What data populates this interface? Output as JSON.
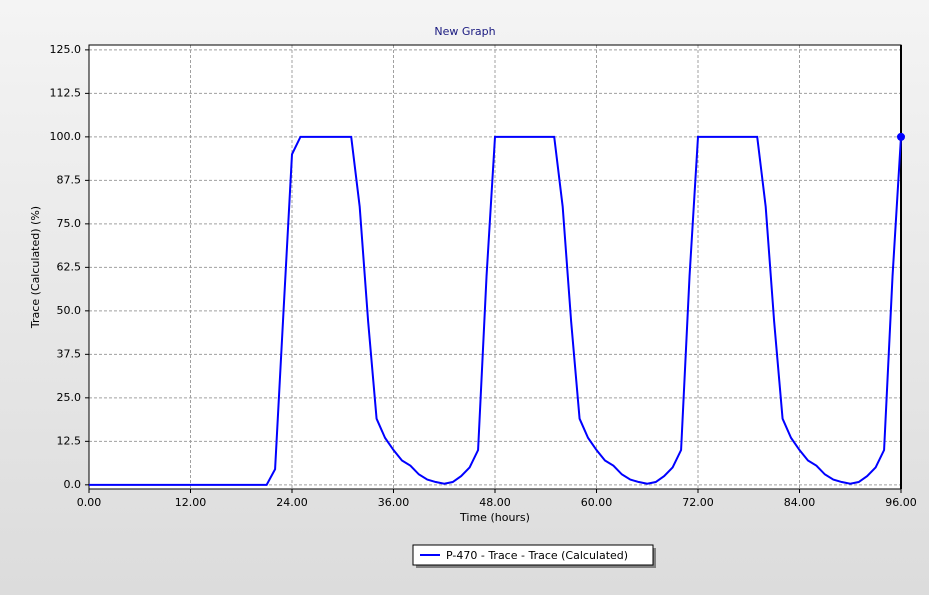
{
  "chart_data": {
    "type": "line",
    "title": "New Graph",
    "x_label": "Time (hours)",
    "y_label": "Trace (Calculated) (%)",
    "xlim": [
      0,
      96
    ],
    "ylim": [
      -1.2,
      126.4
    ],
    "xticks": [
      {
        "value": 0,
        "label": "0.00"
      },
      {
        "value": 12,
        "label": "12.00"
      },
      {
        "value": 24,
        "label": "24.00"
      },
      {
        "value": 36,
        "label": "36.00"
      },
      {
        "value": 48,
        "label": "48.00"
      },
      {
        "value": 60,
        "label": "60.00"
      },
      {
        "value": 72,
        "label": "72.00"
      },
      {
        "value": 84,
        "label": "84.00"
      },
      {
        "value": 96,
        "label": "96.00"
      }
    ],
    "yticks": [
      {
        "value": 0,
        "label": "0.0"
      },
      {
        "value": 12.5,
        "label": "12.5"
      },
      {
        "value": 25,
        "label": "25.0"
      },
      {
        "value": 37.5,
        "label": "37.5"
      },
      {
        "value": 50,
        "label": "50.0"
      },
      {
        "value": 62.5,
        "label": "62.5"
      },
      {
        "value": 75,
        "label": "75.0"
      },
      {
        "value": 87.5,
        "label": "87.5"
      },
      {
        "value": 100,
        "label": "100.0"
      },
      {
        "value": 112.5,
        "label": "112.5"
      },
      {
        "value": 125,
        "label": "125.0"
      }
    ],
    "grid": true,
    "legend": "bottom",
    "x": [
      0,
      1,
      2,
      3,
      4,
      5,
      6,
      7,
      8,
      9,
      10,
      11,
      12,
      13,
      14,
      15,
      16,
      17,
      18,
      19,
      20,
      21,
      22,
      23,
      24,
      25,
      26,
      27,
      28,
      29,
      30,
      31,
      32,
      33,
      34,
      35,
      36,
      37,
      38,
      39,
      40,
      41,
      42,
      43,
      44,
      45,
      46,
      47,
      48,
      49,
      50,
      51,
      52,
      53,
      54,
      55,
      56,
      57,
      58,
      59,
      60,
      61,
      62,
      63,
      64,
      65,
      66,
      67,
      68,
      69,
      70,
      71,
      72,
      73,
      74,
      75,
      76,
      77,
      78,
      79,
      80,
      81,
      82,
      83,
      84,
      85,
      86,
      87,
      88,
      89,
      90,
      91,
      92,
      93,
      94,
      95,
      96
    ],
    "series": [
      {
        "name": "P-470 - Trace - Trace (Calculated)",
        "color": "#0000ff",
        "values": [
          0,
          0,
          0,
          0,
          0,
          0,
          0,
          0,
          0,
          0,
          0,
          0,
          0,
          0,
          0,
          0,
          0,
          0,
          0,
          0,
          0,
          0,
          4.5,
          50,
          95,
          100,
          100,
          100,
          100,
          100,
          100,
          100,
          80,
          47,
          19,
          13.5,
          10,
          7,
          5.5,
          3,
          1.5,
          0.8,
          0.3,
          0.8,
          2.5,
          5,
          10,
          60,
          100,
          100,
          100,
          100,
          100,
          100,
          100,
          100,
          80,
          47,
          19,
          13.5,
          10,
          7,
          5.5,
          3,
          1.5,
          0.8,
          0.3,
          0.8,
          2.5,
          5,
          10,
          60,
          100,
          100,
          100,
          100,
          100,
          100,
          100,
          100,
          80,
          47,
          19,
          13.5,
          10,
          7,
          5.5,
          3,
          1.5,
          0.8,
          0.3,
          0.8,
          2.5,
          5,
          10,
          60,
          100
        ]
      }
    ]
  }
}
